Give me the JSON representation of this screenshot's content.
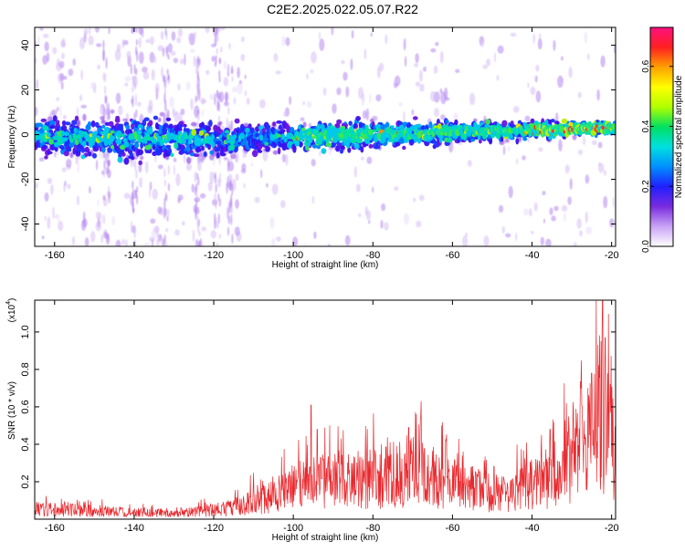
{
  "title": "C2E2.2025.022.05.07.R22",
  "chart_data": [
    {
      "type": "heatmap",
      "xlabel": "Height of straight line (km)",
      "ylabel": "Frequency (Hz)",
      "xlim": [
        -165,
        -19
      ],
      "ylim": [
        -50,
        48
      ],
      "xticks": [
        -160,
        -140,
        -120,
        -100,
        -80,
        -60,
        -40,
        -20
      ],
      "yticks": [
        -40,
        -20,
        0,
        20,
        40
      ],
      "colorbar": {
        "label": "Normalized spectral amplitude",
        "range": [
          0,
          0.73
        ],
        "ticks": [
          0.0,
          0.2,
          0.4,
          0.6
        ],
        "tick_labels": [
          "0.0",
          "0.2",
          "0.4",
          "0.6"
        ],
        "colors": [
          "#ffffff",
          "#c9a3f5",
          "#7a2be0",
          "#2020ff",
          "#0090ff",
          "#00e0e0",
          "#00e060",
          "#b0ff00",
          "#ffff00",
          "#ffa000",
          "#ff2020",
          "#ff1080"
        ]
      },
      "band_center_hz": [
        [
          -165,
          -1
        ],
        [
          -120,
          -2
        ],
        [
          -100,
          -1
        ],
        [
          -80,
          0
        ],
        [
          -60,
          1
        ],
        [
          -40,
          2
        ],
        [
          -20,
          3
        ]
      ],
      "band_halfwidth_hz": [
        [
          -165,
          9
        ],
        [
          -140,
          11
        ],
        [
          -120,
          9
        ],
        [
          -100,
          7
        ],
        [
          -80,
          7
        ],
        [
          -60,
          6
        ],
        [
          -40,
          5
        ],
        [
          -20,
          3
        ]
      ]
    },
    {
      "type": "line",
      "xlabel": "Height of straight line (km)",
      "ylabel": "SNR (10 * v/v)",
      "y_multiplier": "(x10",
      "y_multiplier_exp": "4",
      "xlim": [
        -165,
        -19
      ],
      "ylim": [
        0,
        1.17
      ],
      "xticks": [
        -160,
        -140,
        -120,
        -100,
        -80,
        -60,
        -40,
        -20
      ],
      "yticks": [
        0.2,
        0.4,
        0.6,
        0.8,
        1.0
      ],
      "ytick_labels": [
        "0.2",
        "0.4",
        "0.6",
        "0.8",
        "1.0"
      ],
      "color": "#e8282d",
      "envelope": [
        [
          -165,
          0.09
        ],
        [
          -150,
          0.07
        ],
        [
          -135,
          0.05
        ],
        [
          -125,
          0.06
        ],
        [
          -115,
          0.1
        ],
        [
          -108,
          0.18
        ],
        [
          -100,
          0.26
        ],
        [
          -95,
          0.33
        ],
        [
          -90,
          0.32
        ],
        [
          -85,
          0.32
        ],
        [
          -80,
          0.36
        ],
        [
          -75,
          0.38
        ],
        [
          -70,
          0.42
        ],
        [
          -65,
          0.36
        ],
        [
          -60,
          0.3
        ],
        [
          -55,
          0.26
        ],
        [
          -50,
          0.22
        ],
        [
          -45,
          0.24
        ],
        [
          -40,
          0.3
        ],
        [
          -35,
          0.38
        ],
        [
          -30,
          0.55
        ],
        [
          -26,
          0.75
        ],
        [
          -23,
          0.9
        ],
        [
          -21,
          0.85
        ],
        [
          -19,
          0.5
        ]
      ],
      "peaks": [
        [
          -95.5,
          0.61
        ],
        [
          -94,
          0.48
        ],
        [
          -68,
          0.54
        ],
        [
          -71,
          0.49
        ],
        [
          -35.5,
          0.48
        ],
        [
          -25,
          0.78
        ],
        [
          -22.3,
          1.17
        ],
        [
          -21.6,
          0.97
        ],
        [
          -20.5,
          0.62
        ]
      ]
    }
  ]
}
